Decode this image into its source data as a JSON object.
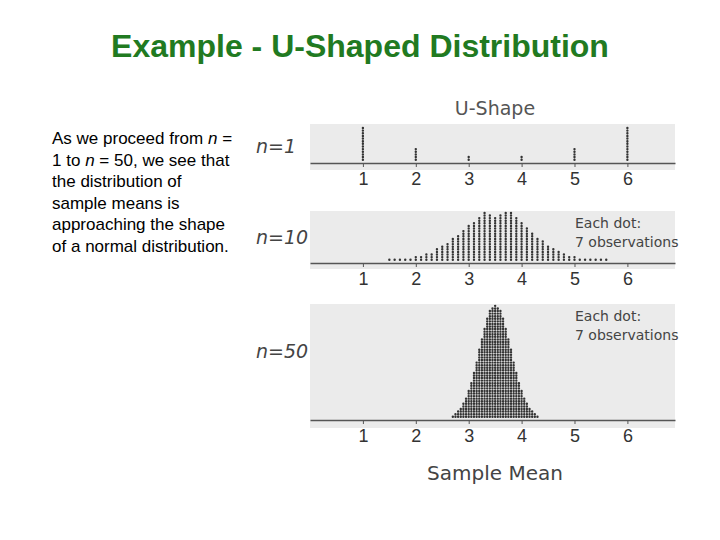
{
  "title": "Example - U-Shaped Distribution",
  "body": "As we proceed from n = 1 to n = 50, we see that the distribution of sample means is approaching the shape of a normal distribution.",
  "chart_data": [
    {
      "type": "dot",
      "title": "U-Shape",
      "subtitle": "n=1",
      "color": "#333333",
      "grid": false,
      "tick_labels": "x",
      "xlim": [
        0,
        6.9
      ],
      "xticks": [
        1,
        2,
        3,
        4,
        5,
        6
      ],
      "ylim": [
        0,
        14
      ],
      "x": [
        1,
        2,
        3,
        4,
        5,
        6
      ],
      "values": [
        13,
        5,
        2,
        2,
        5,
        13
      ]
    },
    {
      "type": "dot",
      "subtitle": "n=10",
      "annotation": [
        "Each dot:",
        "7 observations"
      ],
      "color": "#333333",
      "grid": false,
      "tick_labels": "x",
      "xlim": [
        0,
        6.9
      ],
      "xticks": [
        1,
        2,
        3,
        4,
        5,
        6
      ],
      "ylim": [
        0,
        20
      ],
      "x": [
        1.5,
        1.6,
        1.7,
        1.8,
        1.9,
        2.0,
        2.1,
        2.2,
        2.3,
        2.4,
        2.5,
        2.6,
        2.7,
        2.8,
        2.9,
        3.0,
        3.1,
        3.2,
        3.3,
        3.4,
        3.5,
        3.6,
        3.7,
        3.8,
        3.9,
        4.0,
        4.1,
        4.2,
        4.3,
        4.4,
        4.5,
        4.6,
        4.7,
        4.8,
        4.9,
        5.0,
        5.1,
        5.2,
        5.3,
        5.4,
        5.5,
        5.6
      ],
      "values": [
        1,
        1,
        1,
        1,
        1,
        2,
        2,
        3,
        3,
        5,
        6,
        7,
        9,
        10,
        12,
        14,
        15,
        17,
        19,
        18,
        17,
        18,
        19,
        19,
        17,
        15,
        13,
        11,
        9,
        8,
        6,
        5,
        4,
        3,
        2,
        2,
        1,
        1,
        1,
        1,
        1,
        1
      ]
    },
    {
      "type": "dot",
      "subtitle": "n=50",
      "annotation": [
        "Each dot:",
        "7 observations"
      ],
      "xlabel": "Sample Mean",
      "color": "#333333",
      "grid": false,
      "tick_labels": "x",
      "xlim": [
        0,
        6.9
      ],
      "xticks": [
        1,
        2,
        3,
        4,
        5,
        6
      ],
      "ylim": [
        0,
        45
      ],
      "x": [
        2.7,
        2.75,
        2.8,
        2.85,
        2.9,
        2.95,
        3.0,
        3.05,
        3.1,
        3.15,
        3.2,
        3.25,
        3.3,
        3.35,
        3.4,
        3.45,
        3.5,
        3.55,
        3.6,
        3.65,
        3.7,
        3.75,
        3.8,
        3.85,
        3.9,
        3.95,
        4.0,
        4.05,
        4.1,
        4.15,
        4.2,
        4.25,
        4.3
      ],
      "values": [
        1,
        2,
        3,
        4,
        6,
        8,
        11,
        14,
        18,
        22,
        27,
        31,
        35,
        39,
        42,
        43,
        44,
        43,
        42,
        39,
        35,
        31,
        27,
        22,
        18,
        14,
        11,
        8,
        6,
        4,
        3,
        2,
        1
      ]
    }
  ]
}
